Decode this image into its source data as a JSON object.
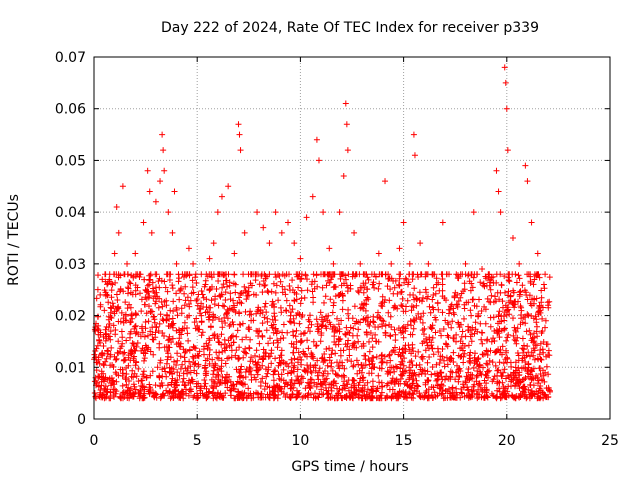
{
  "chart_data": {
    "type": "scatter",
    "title": "Day 222 of 2024, Rate Of TEC Index for receiver p339",
    "xlabel": "GPS time / hours",
    "ylabel": "ROTI / TECUs",
    "xlim": [
      0,
      25
    ],
    "ylim": [
      0,
      0.07
    ],
    "x_ticks": [
      "0",
      "5",
      "10",
      "15",
      "20",
      "25"
    ],
    "y_ticks": [
      "0",
      "0.01",
      "0.02",
      "0.03",
      "0.04",
      "0.05",
      "0.06",
      "0.07"
    ],
    "grid": true,
    "marker": "plus",
    "series": [
      {
        "color": "#ff0000",
        "points": [
          [
            0.1,
            0.012
          ],
          [
            0.2,
            0.018
          ],
          [
            0.3,
            0.024
          ],
          [
            0.4,
            0.027
          ],
          [
            0.5,
            0.021
          ],
          [
            0.7,
            0.016
          ],
          [
            0.9,
            0.026
          ],
          [
            1.0,
            0.032
          ],
          [
            1.1,
            0.041
          ],
          [
            1.2,
            0.036
          ],
          [
            1.4,
            0.045
          ],
          [
            1.6,
            0.03
          ],
          [
            1.8,
            0.02
          ],
          [
            2.0,
            0.032
          ],
          [
            2.2,
            0.028
          ],
          [
            2.4,
            0.038
          ],
          [
            2.6,
            0.048
          ],
          [
            2.7,
            0.044
          ],
          [
            2.8,
            0.036
          ],
          [
            3.0,
            0.042
          ],
          [
            3.2,
            0.046
          ],
          [
            3.3,
            0.055
          ],
          [
            3.35,
            0.052
          ],
          [
            3.4,
            0.048
          ],
          [
            3.6,
            0.04
          ],
          [
            3.8,
            0.036
          ],
          [
            3.9,
            0.044
          ],
          [
            4.0,
            0.03
          ],
          [
            4.2,
            0.025
          ],
          [
            4.4,
            0.022
          ],
          [
            4.6,
            0.033
          ],
          [
            4.8,
            0.03
          ],
          [
            5.0,
            0.018
          ],
          [
            5.2,
            0.02
          ],
          [
            5.4,
            0.026
          ],
          [
            5.6,
            0.031
          ],
          [
            5.8,
            0.034
          ],
          [
            6.0,
            0.04
          ],
          [
            6.2,
            0.043
          ],
          [
            6.5,
            0.045
          ],
          [
            6.8,
            0.032
          ],
          [
            7.0,
            0.057
          ],
          [
            7.05,
            0.055
          ],
          [
            7.1,
            0.052
          ],
          [
            7.3,
            0.036
          ],
          [
            7.6,
            0.028
          ],
          [
            7.9,
            0.04
          ],
          [
            8.2,
            0.037
          ],
          [
            8.5,
            0.034
          ],
          [
            8.8,
            0.04
          ],
          [
            9.1,
            0.036
          ],
          [
            9.4,
            0.038
          ],
          [
            9.7,
            0.034
          ],
          [
            10.0,
            0.031
          ],
          [
            10.3,
            0.039
          ],
          [
            10.6,
            0.043
          ],
          [
            10.8,
            0.054
          ],
          [
            10.9,
            0.05
          ],
          [
            11.1,
            0.04
          ],
          [
            11.4,
            0.033
          ],
          [
            11.6,
            0.03
          ],
          [
            11.9,
            0.04
          ],
          [
            12.1,
            0.047
          ],
          [
            12.2,
            0.061
          ],
          [
            12.25,
            0.057
          ],
          [
            12.3,
            0.052
          ],
          [
            12.6,
            0.036
          ],
          [
            12.9,
            0.03
          ],
          [
            13.2,
            0.028
          ],
          [
            13.5,
            0.026
          ],
          [
            13.8,
            0.032
          ],
          [
            14.1,
            0.046
          ],
          [
            14.4,
            0.03
          ],
          [
            14.8,
            0.033
          ],
          [
            15.0,
            0.038
          ],
          [
            15.3,
            0.03
          ],
          [
            15.5,
            0.055
          ],
          [
            15.55,
            0.051
          ],
          [
            15.8,
            0.034
          ],
          [
            16.2,
            0.03
          ],
          [
            16.6,
            0.026
          ],
          [
            16.9,
            0.038
          ],
          [
            17.2,
            0.028
          ],
          [
            17.6,
            0.024
          ],
          [
            18.0,
            0.03
          ],
          [
            18.4,
            0.04
          ],
          [
            18.8,
            0.029
          ],
          [
            19.2,
            0.027
          ],
          [
            19.5,
            0.048
          ],
          [
            19.6,
            0.044
          ],
          [
            19.7,
            0.04
          ],
          [
            19.9,
            0.068
          ],
          [
            19.95,
            0.065
          ],
          [
            20.0,
            0.06
          ],
          [
            20.05,
            0.052
          ],
          [
            20.3,
            0.035
          ],
          [
            20.6,
            0.03
          ],
          [
            20.9,
            0.049
          ],
          [
            21.0,
            0.046
          ],
          [
            21.2,
            0.038
          ],
          [
            21.5,
            0.032
          ],
          [
            21.8,
            0.026
          ],
          [
            22.0,
            0.022
          ]
        ],
        "bulk": {
          "x_range": [
            0,
            22.1
          ],
          "y_range": [
            0.002,
            0.028
          ],
          "count": 3000,
          "note_free": true
        }
      }
    ]
  }
}
